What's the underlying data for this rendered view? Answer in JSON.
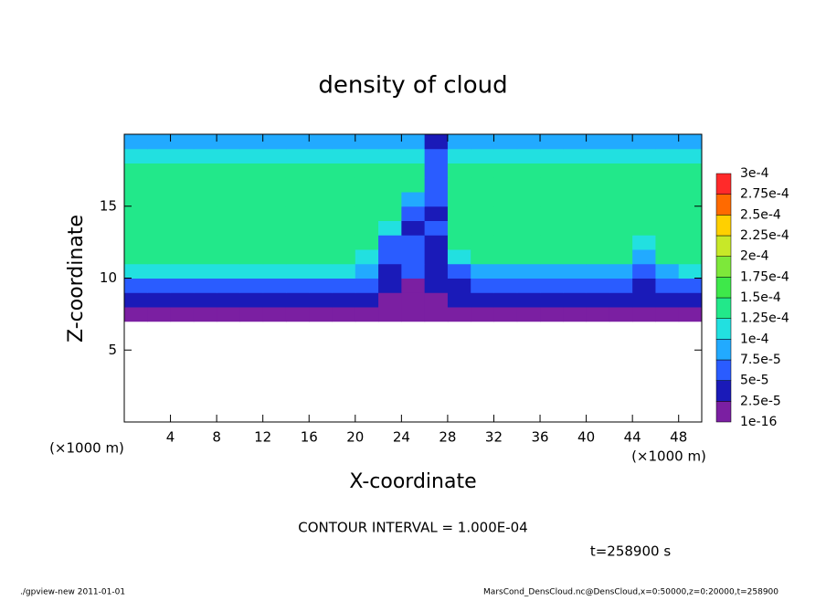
{
  "chart_data": {
    "type": "heatmap",
    "title": "density of cloud",
    "xlabel": "X-coordinate",
    "ylabel": "Z-coordinate",
    "x_unit_label": "(×1000 m)",
    "y_unit_label": "(×1000 m)",
    "annotation": "CONTOUR INTERVAL = 1.000E-04",
    "time_label": "t=258900 s",
    "footer_left": "./gpview-new  2011-01-01",
    "footer_right": "MarsCond_DensCloud.nc@DensCloud,x=0:50000,z=0:20000,t=258900",
    "xlim": [
      0,
      50
    ],
    "ylim": [
      0,
      20
    ],
    "xticks": [
      4,
      8,
      12,
      16,
      20,
      24,
      28,
      32,
      36,
      40,
      44,
      48
    ],
    "yticks": [
      5,
      10,
      15
    ],
    "x": [
      1,
      3,
      5,
      7,
      9,
      11,
      13,
      15,
      17,
      19,
      21,
      23,
      25,
      27,
      29,
      31,
      33,
      35,
      37,
      39,
      41,
      43,
      45,
      47,
      49
    ],
    "z": [
      0.5,
      1.5,
      2.5,
      3.5,
      4.5,
      5.5,
      6.5,
      7.5,
      8.5,
      9.5,
      10.5,
      11.5,
      12.5,
      13.5,
      14.5,
      15.5,
      16.5,
      17.5,
      18.5,
      19.5
    ],
    "values": [
      [
        0,
        0,
        0,
        0,
        0,
        0,
        0,
        0,
        0,
        0,
        0,
        0,
        0,
        0,
        0,
        0,
        0,
        0,
        0,
        0,
        0,
        0,
        0,
        0,
        0
      ],
      [
        0,
        0,
        0,
        0,
        0,
        0,
        0,
        0,
        0,
        0,
        0,
        0,
        0,
        0,
        0,
        0,
        0,
        0,
        0,
        0,
        0,
        0,
        0,
        0,
        0
      ],
      [
        0,
        0,
        0,
        0,
        0,
        0,
        0,
        0,
        0,
        0,
        0,
        0,
        0,
        0,
        0,
        0,
        0,
        0,
        0,
        0,
        0,
        0,
        0,
        0,
        0
      ],
      [
        0,
        0,
        0,
        0,
        0,
        0,
        0,
        0,
        0,
        0,
        0,
        0,
        0,
        0,
        0,
        0,
        0,
        0,
        0,
        0,
        0,
        0,
        0,
        0,
        0
      ],
      [
        0,
        0,
        0,
        0,
        0,
        0,
        0,
        0,
        0,
        0,
        0,
        0,
        0,
        0,
        0,
        0,
        0,
        0,
        0,
        0,
        0,
        0,
        0,
        0,
        0
      ],
      [
        0,
        0,
        0,
        0,
        0,
        0,
        0,
        0,
        0,
        0,
        0,
        0,
        0,
        0,
        0,
        0,
        0,
        0,
        0,
        0,
        0,
        0,
        0,
        0,
        0
      ],
      [
        0,
        0,
        0,
        0,
        0,
        0,
        0,
        0,
        0,
        0,
        0,
        0,
        0,
        0,
        0,
        0,
        0,
        0,
        0,
        0,
        0,
        0,
        0,
        0,
        0
      ],
      [
        1e-05,
        1e-05,
        1e-05,
        1e-05,
        1e-05,
        1e-05,
        1e-05,
        1e-05,
        1e-05,
        1e-05,
        1e-05,
        1e-05,
        1e-05,
        1e-05,
        1e-05,
        1e-05,
        1e-05,
        1e-05,
        1e-05,
        1e-05,
        1e-05,
        1e-05,
        1e-05,
        1e-05,
        1e-05
      ],
      [
        3e-05,
        3e-05,
        3e-05,
        3e-05,
        3e-05,
        3e-05,
        3e-05,
        3e-05,
        3e-05,
        3e-05,
        3e-05,
        2e-05,
        2e-05,
        2e-05,
        3e-05,
        3e-05,
        3e-05,
        3e-05,
        3e-05,
        3e-05,
        3e-05,
        3e-05,
        3e-05,
        3e-05,
        3e-05
      ],
      [
        6e-05,
        6e-05,
        6e-05,
        6e-05,
        6e-05,
        6e-05,
        6e-05,
        6e-05,
        6e-05,
        6e-05,
        5e-05,
        3e-05,
        2e-05,
        3e-05,
        4e-05,
        6e-05,
        6e-05,
        6e-05,
        6e-05,
        6e-05,
        6e-05,
        6e-05,
        4e-05,
        6e-05,
        6e-05
      ],
      [
        0.00011,
        0.00011,
        0.00011,
        0.00011,
        0.00011,
        0.00011,
        0.00011,
        0.00011,
        0.00011,
        0.00011,
        8e-05,
        4e-05,
        5e-05,
        4e-05,
        6e-05,
        9e-05,
        9e-05,
        9e-05,
        9e-05,
        9e-05,
        9e-05,
        9e-05,
        5e-05,
        9e-05,
        0.0001
      ],
      [
        0.000125,
        0.000125,
        0.000125,
        0.000125,
        0.000125,
        0.000125,
        0.000125,
        0.000125,
        0.000125,
        0.000125,
        0.0001,
        5e-05,
        6e-05,
        4e-05,
        0.00011,
        0.000125,
        0.000125,
        0.000125,
        0.000125,
        0.000125,
        0.000125,
        0.000125,
        8e-05,
        0.000125,
        0.000125
      ],
      [
        0.00013,
        0.00013,
        0.00013,
        0.00013,
        0.00013,
        0.00013,
        0.00013,
        0.00013,
        0.00013,
        0.00013,
        0.00013,
        7e-05,
        5e-05,
        4e-05,
        0.00013,
        0.00013,
        0.00013,
        0.00013,
        0.00013,
        0.00013,
        0.00013,
        0.00013,
        0.00011,
        0.00013,
        0.00013
      ],
      [
        0.000135,
        0.000135,
        0.000135,
        0.000135,
        0.000135,
        0.000135,
        0.000135,
        0.000135,
        0.000135,
        0.000135,
        0.000135,
        0.0001,
        4e-05,
        5e-05,
        0.000135,
        0.000135,
        0.000135,
        0.000135,
        0.000135,
        0.000135,
        0.000135,
        0.000135,
        0.000135,
        0.000135,
        0.000135
      ],
      [
        0.000135,
        0.000135,
        0.000135,
        0.000135,
        0.000135,
        0.000135,
        0.000135,
        0.000135,
        0.000135,
        0.000135,
        0.000135,
        0.000135,
        6e-05,
        4e-05,
        0.000135,
        0.000135,
        0.000135,
        0.000135,
        0.000135,
        0.000135,
        0.000135,
        0.000135,
        0.000135,
        0.000135,
        0.000135
      ],
      [
        0.00014,
        0.00014,
        0.00014,
        0.00014,
        0.00014,
        0.00014,
        0.00014,
        0.00014,
        0.00014,
        0.00014,
        0.00014,
        0.00014,
        8e-05,
        5e-05,
        0.00014,
        0.00014,
        0.00014,
        0.00014,
        0.00014,
        0.00014,
        0.00014,
        0.00014,
        0.00014,
        0.00014,
        0.00014
      ],
      [
        0.000135,
        0.000135,
        0.000135,
        0.000135,
        0.000135,
        0.000135,
        0.000135,
        0.000135,
        0.000135,
        0.000135,
        0.000135,
        0.000135,
        0.000135,
        6e-05,
        0.000135,
        0.000135,
        0.000135,
        0.000135,
        0.000135,
        0.000135,
        0.000135,
        0.000135,
        0.000135,
        0.000135,
        0.000135
      ],
      [
        0.00013,
        0.00013,
        0.00013,
        0.00013,
        0.00013,
        0.00013,
        0.00013,
        0.00013,
        0.00013,
        0.00013,
        0.00013,
        0.00013,
        0.00013,
        5e-05,
        0.00013,
        0.00013,
        0.00013,
        0.00013,
        0.00013,
        0.00013,
        0.00013,
        0.00013,
        0.00013,
        0.00013,
        0.00013
      ],
      [
        0.00012,
        0.00012,
        0.00012,
        0.00012,
        0.00012,
        0.00012,
        0.00012,
        0.00012,
        0.00012,
        0.00012,
        0.00012,
        0.00012,
        0.00012,
        5e-05,
        0.00012,
        0.00012,
        0.00012,
        0.00012,
        0.00012,
        0.00012,
        0.00012,
        0.00012,
        0.00012,
        0.00012,
        0.00012
      ],
      [
        9e-05,
        9e-05,
        9e-05,
        9e-05,
        9e-05,
        9e-05,
        9e-05,
        9e-05,
        9e-05,
        9e-05,
        9e-05,
        9e-05,
        9e-05,
        4e-05,
        9e-05,
        9e-05,
        9e-05,
        9e-05,
        9e-05,
        9e-05,
        9e-05,
        9e-05,
        9e-05,
        9e-05,
        9e-05
      ]
    ],
    "colorbar": {
      "levels": [
        {
          "value": 1e-16,
          "label": "1e-16"
        },
        {
          "value": 2.5e-05,
          "label": "2.5e-5"
        },
        {
          "value": 5e-05,
          "label": "5e-5"
        },
        {
          "value": 7.5e-05,
          "label": "7.5e-5"
        },
        {
          "value": 0.0001,
          "label": "1e-4"
        },
        {
          "value": 0.000125,
          "label": "1.25e-4"
        },
        {
          "value": 0.00015,
          "label": "1.5e-4"
        },
        {
          "value": 0.000175,
          "label": "1.75e-4"
        },
        {
          "value": 0.0002,
          "label": "2e-4"
        },
        {
          "value": 0.000225,
          "label": "2.25e-4"
        },
        {
          "value": 0.00025,
          "label": "2.5e-4"
        },
        {
          "value": 0.000275,
          "label": "2.75e-4"
        },
        {
          "value": 0.0003,
          "label": "3e-4"
        }
      ],
      "colors": [
        "#7b1fa2",
        "#1a1ab8",
        "#2a5cff",
        "#22aaff",
        "#22e0e0",
        "#22e88a",
        "#3ee84a",
        "#7de83a",
        "#c8e828",
        "#ffd000",
        "#ff6a00",
        "#ff2a2a",
        "#ff9090"
      ]
    }
  }
}
